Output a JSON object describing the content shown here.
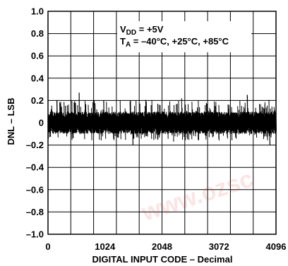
{
  "chart_data": {
    "type": "line",
    "title": "",
    "xlabel": "DIGITAL INPUT CODE – Decimal",
    "ylabel": "DNL – LSB",
    "xlim": [
      0,
      4096
    ],
    "ylim": [
      -1.0,
      1.0
    ],
    "x_ticks": [
      "0",
      "1024",
      "2048",
      "3072",
      "4096"
    ],
    "y_ticks": [
      "1.0",
      "0.8",
      "0.6",
      "0.4",
      "0.2",
      "0",
      "–0.2",
      "–0.4",
      "–0.6",
      "–0.8",
      "–1.0"
    ],
    "grid": true,
    "annotation": {
      "line1_main": "V",
      "line1_sub": "DD",
      "line1_rest": " = +5V",
      "line2_main": "T",
      "line2_sub": "A",
      "line2_rest": " = –40°C, +25°C, +85°C"
    },
    "series": [
      {
        "color": "#000000",
        "noise_envelope": {
          "x_start": 0,
          "x_end": 4096,
          "typical_min": -0.1,
          "typical_max": 0.1,
          "peak_min": -0.2,
          "peak_max": 0.28
        },
        "peaks": [
          {
            "x": 160,
            "y": 0.2
          },
          {
            "x": 560,
            "y": 0.27
          },
          {
            "x": 1000,
            "y": 0.2
          },
          {
            "x": 1480,
            "y": 0.2
          },
          {
            "x": 2400,
            "y": 0.22
          },
          {
            "x": 2700,
            "y": 0.2
          },
          {
            "x": 3580,
            "y": 0.25
          },
          {
            "x": 1520,
            "y": -0.2
          },
          {
            "x": 2250,
            "y": -0.17
          },
          {
            "x": 3980,
            "y": -0.2
          }
        ]
      }
    ]
  },
  "watermark": {
    "text": "www.ozsc",
    "color": "#e53935"
  }
}
